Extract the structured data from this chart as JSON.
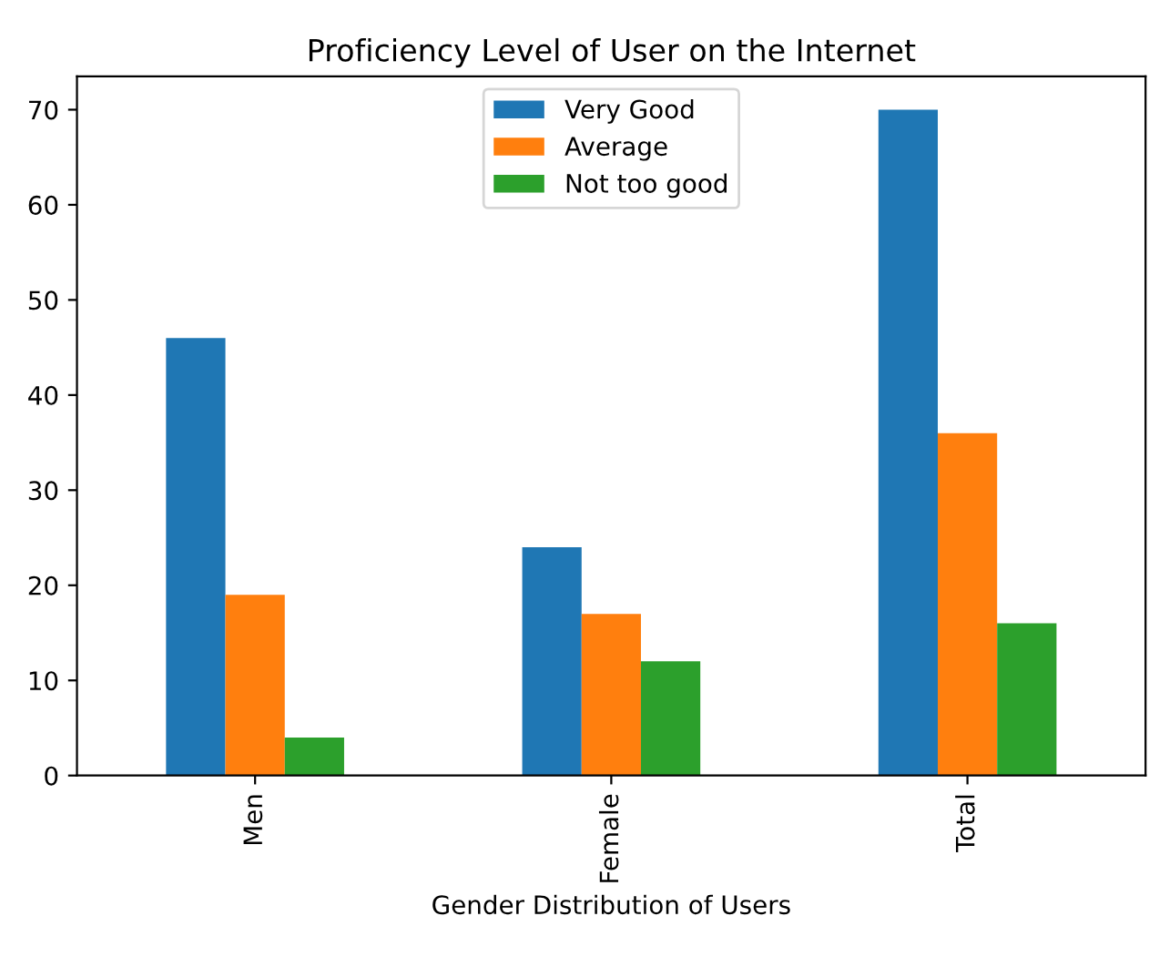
{
  "chart_data": {
    "type": "bar",
    "title": "Proficiency Level of User on the Internet",
    "xlabel": "Gender Distribution of Users",
    "categories": [
      "Men",
      "Female",
      "Total"
    ],
    "series": [
      {
        "name": "Very Good",
        "color": "#1f77b4",
        "values": [
          46,
          24,
          70
        ]
      },
      {
        "name": "Average",
        "color": "#ff7f0e",
        "values": [
          19,
          17,
          36
        ]
      },
      {
        "name": "Not too good",
        "color": "#2ca02c",
        "values": [
          4,
          12,
          16
        ]
      }
    ],
    "ylim": [
      0,
      73.5
    ],
    "yticks": [
      0,
      10,
      20,
      30,
      40,
      50,
      60,
      70
    ],
    "grid": false,
    "legend": "top"
  }
}
